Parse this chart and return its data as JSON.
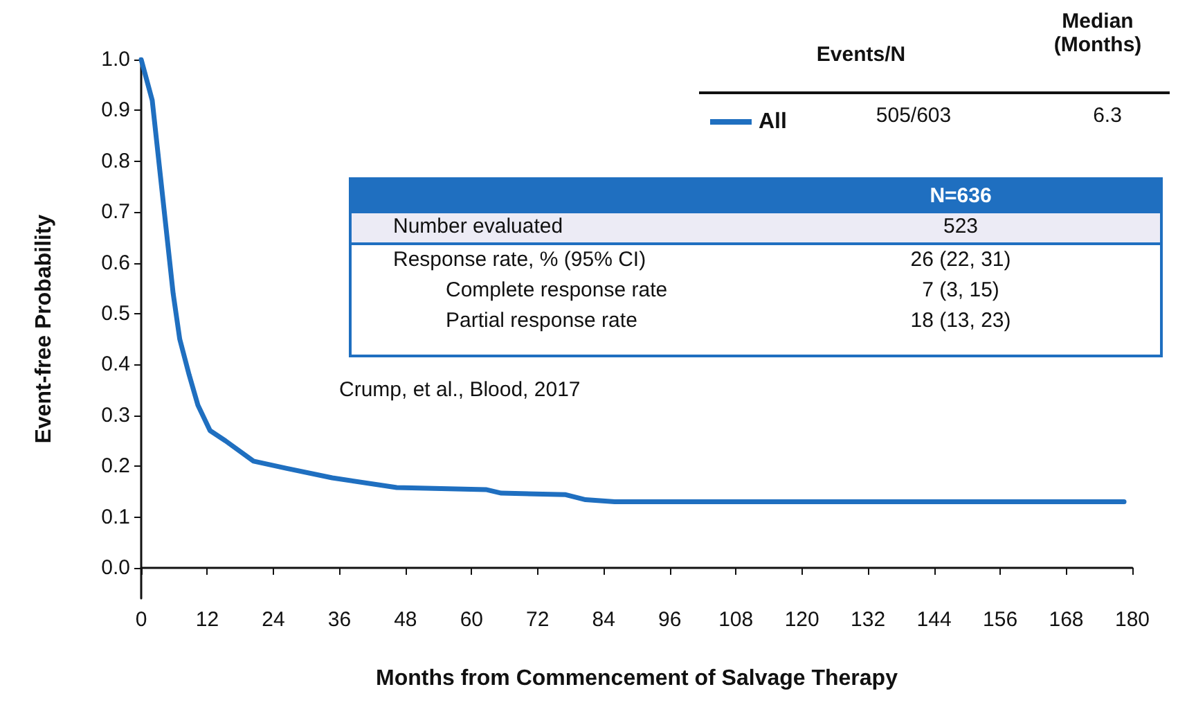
{
  "chart_data": {
    "type": "line",
    "xlabel": "Months from Commencement of Salvage Therapy",
    "ylabel": "Event-free Probability",
    "xlim": [
      0,
      180
    ],
    "xticks": [
      0,
      12,
      24,
      36,
      48,
      60,
      72,
      84,
      96,
      108,
      120,
      132,
      144,
      156,
      168,
      180
    ],
    "ylim": [
      -0.06,
      1.0
    ],
    "yticks": [
      {
        "value": 0,
        "label": "0.0"
      },
      {
        "value": 0.1,
        "label": "0.1"
      },
      {
        "value": 0.2,
        "label": "0.2"
      },
      {
        "value": 0.3,
        "label": "0.3"
      },
      {
        "value": 0.4,
        "label": "0.4"
      },
      {
        "value": 0.5,
        "label": "0.5"
      },
      {
        "value": 0.6,
        "label": "0.6"
      },
      {
        "value": 0.7,
        "label": "0.7"
      },
      {
        "value": 0.8,
        "label": "0.8"
      },
      {
        "value": 0.9,
        "label": "0.9"
      },
      {
        "value": 1.0,
        "label": "1.0"
      }
    ],
    "x": [
      0,
      2,
      3.3,
      4.5,
      5.8,
      7,
      8.7,
      10.3,
      12.5,
      15.3,
      20.4,
      26.3,
      34.7,
      46.4,
      62.6,
      65.4,
      77.1,
      80.7,
      86,
      178.5
    ],
    "series": [
      {
        "name": "All",
        "color": "#1f6fc0",
        "values": [
          1.0,
          0.92,
          0.79,
          0.67,
          0.54,
          0.45,
          0.38,
          0.32,
          0.27,
          0.25,
          0.21,
          0.196,
          0.177,
          0.158,
          0.154,
          0.147,
          0.144,
          0.134,
          0.13,
          0.13
        ]
      }
    ],
    "legend": "top right",
    "grid": false,
    "marker": "none",
    "line_style": "solid",
    "annotations": [
      "Events/N",
      "Median (Months)",
      "505/603",
      "6.3",
      "N=636",
      "Number evaluated",
      "523",
      "Response rate, % (95% CI)",
      "26 (22, 31)",
      "Complete response rate",
      "7 (3, 15)",
      "Partial response rate",
      "18 (13, 23)",
      "Crump, et al., Blood, 2017"
    ]
  }
}
